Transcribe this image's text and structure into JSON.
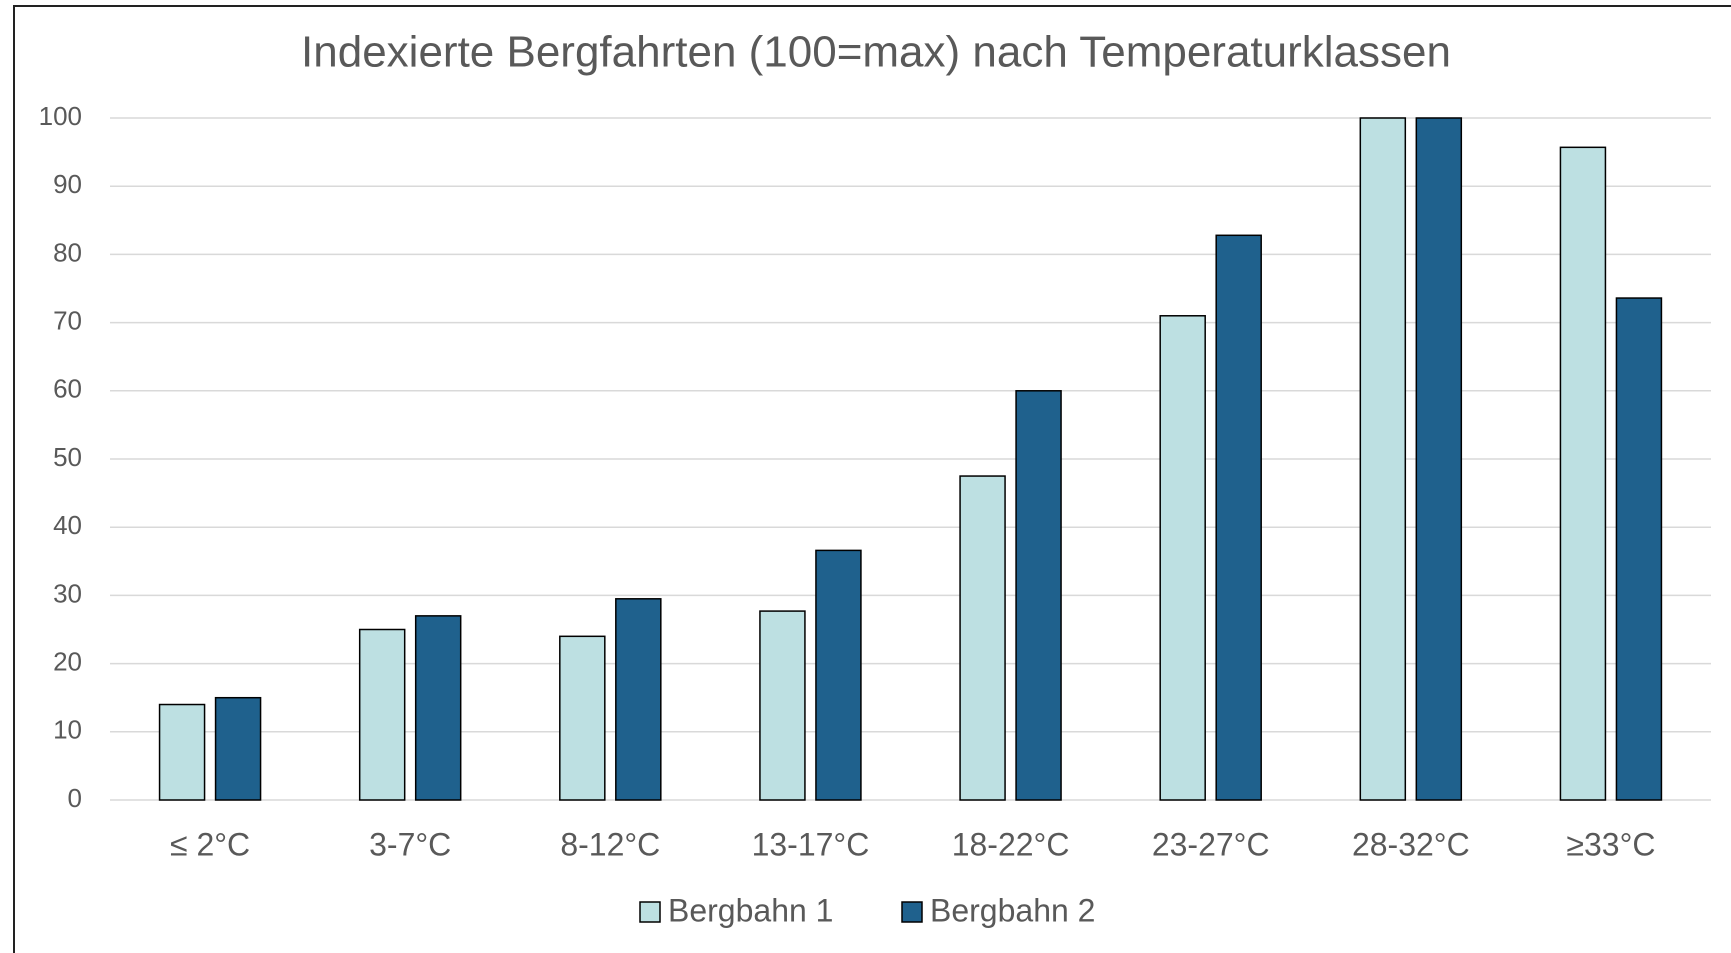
{
  "chart_data": {
    "type": "bar",
    "title": "Indexierte Bergfahrten (100=max) nach Temperaturklassen",
    "categories": [
      "≤ 2°C",
      "3-7°C",
      "8-12°C",
      "13-17°C",
      "18-22°C",
      "23-27°C",
      "28-32°C",
      "≥33°C"
    ],
    "series": [
      {
        "name": "Bergbahn 1",
        "color": "#bde0e2",
        "values": [
          14,
          25,
          24,
          27.7,
          47.5,
          71,
          100,
          95.7
        ]
      },
      {
        "name": "Bergbahn 2",
        "color": "#1f618d",
        "values": [
          15,
          27,
          29.5,
          36.6,
          60,
          82.8,
          100,
          73.6
        ]
      }
    ],
    "ylim": [
      0,
      100
    ],
    "yticks": [
      0,
      10,
      20,
      30,
      40,
      50,
      60,
      70,
      80,
      90,
      100
    ],
    "grid": true,
    "legend": "bottom"
  }
}
